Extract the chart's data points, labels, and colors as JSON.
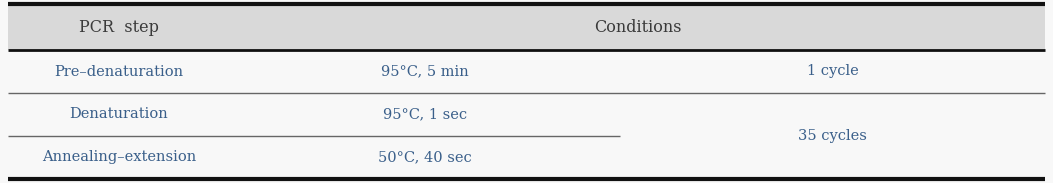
{
  "header_col1": "PCR  step",
  "header_col2": "Conditions",
  "rows": [
    {
      "step": "Pre–denaturation",
      "condition": "95°C, 5 min",
      "cycle": "1 cycle"
    },
    {
      "step": "Denaturation",
      "condition": "95°C, 1 sec",
      "cycle": "35 cycles"
    },
    {
      "step": "Annealing–extension",
      "condition": "50°C, 40 sec",
      "cycle": ""
    }
  ],
  "header_bg": "#d9d9d9",
  "header_text_color": "#3a3a3a",
  "body_text_color": "#3a5f8a",
  "outer_line_color": "#111111",
  "inner_line_color": "#666666",
  "bg_color": "#f8f8f8",
  "font_size": 10.5,
  "header_font_size": 11.5
}
